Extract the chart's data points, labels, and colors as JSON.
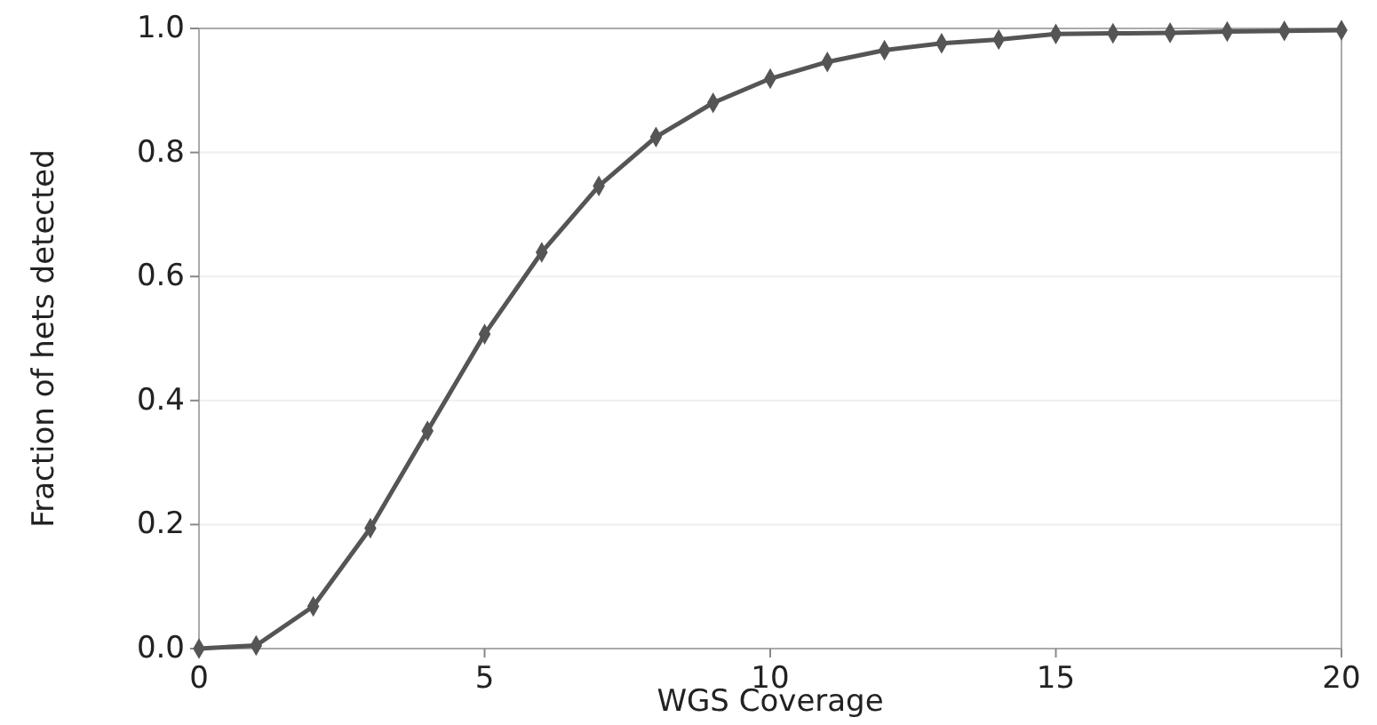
{
  "chart_data": {
    "type": "line",
    "xlabel": "WGS Coverage",
    "ylabel": "Fraction of hets detected",
    "x": [
      0,
      1,
      2,
      3,
      4,
      5,
      6,
      7,
      8,
      9,
      10,
      11,
      12,
      13,
      14,
      15,
      16,
      17,
      18,
      19,
      20
    ],
    "series": [
      {
        "color": "#555555",
        "values": [
          0,
          0.005,
          0.068,
          0.194,
          0.351,
          0.507,
          0.639,
          0.746,
          0.825,
          0.88,
          0.919,
          0.946,
          0.965,
          0.976,
          0.982,
          0.991,
          0.992,
          0.993,
          0.995,
          0.996,
          0.997
        ]
      }
    ],
    "xlim": [
      0,
      20
    ],
    "xticks": [
      0,
      5,
      10,
      15,
      20
    ],
    "ylim": [
      0,
      1
    ],
    "yticks": [
      {
        "value": 0,
        "label": "0.0"
      },
      {
        "value": 0.2,
        "label": "0.2"
      },
      {
        "value": 0.4,
        "label": "0.4"
      },
      {
        "value": 0.6,
        "label": "0.6"
      },
      {
        "value": 0.8,
        "label": "0.8"
      },
      {
        "value": 1,
        "label": "1.0"
      }
    ],
    "grid": "y",
    "marker": "diamond",
    "line_style": "solid"
  }
}
